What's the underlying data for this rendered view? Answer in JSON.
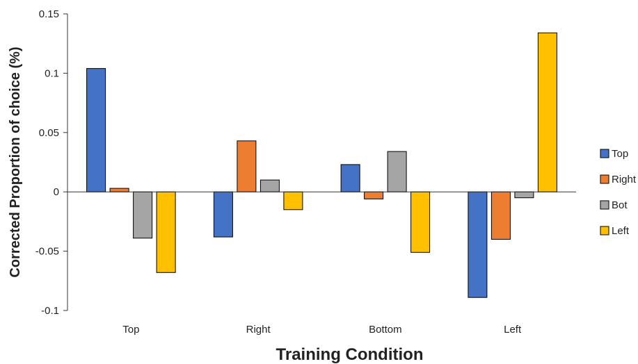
{
  "chart_data": {
    "type": "bar",
    "title": "",
    "xlabel": "Training Condition",
    "ylabel": "Corrected Proportion of choice (%)",
    "categories": [
      "Top",
      "Right",
      "Bottom",
      "Left"
    ],
    "series": [
      {
        "name": "Top",
        "color": "#4472C4",
        "values": [
          0.104,
          -0.038,
          0.023,
          -0.089
        ]
      },
      {
        "name": "Right",
        "color": "#ED7D31",
        "values": [
          0.003,
          0.043,
          -0.006,
          -0.04
        ]
      },
      {
        "name": "Bot",
        "color": "#A5A5A5",
        "values": [
          -0.039,
          0.01,
          0.034,
          -0.005
        ]
      },
      {
        "name": "Left",
        "color": "#FFC000",
        "values": [
          -0.068,
          -0.015,
          -0.051,
          0.134
        ]
      }
    ],
    "yticks": [
      -0.1,
      -0.05,
      0,
      0.05,
      0.1,
      0.15
    ],
    "ytick_labels": [
      "-0.1",
      "-0.05",
      "0",
      "0.05",
      "0.1",
      "0.15"
    ],
    "ylim": [
      -0.1,
      0.15
    ],
    "grid": false,
    "legend_position": "right"
  }
}
